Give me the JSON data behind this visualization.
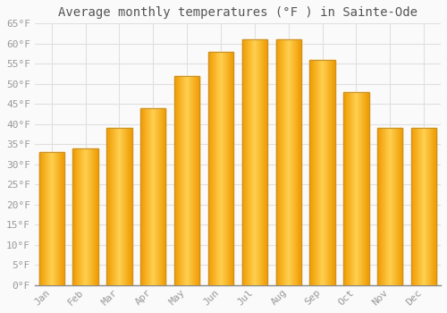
{
  "title": "Average monthly temperatures (°F ) in Sainte-Ode",
  "months": [
    "Jan",
    "Feb",
    "Mar",
    "Apr",
    "May",
    "Jun",
    "Jul",
    "Aug",
    "Sep",
    "Oct",
    "Nov",
    "Dec"
  ],
  "values": [
    33,
    34,
    39,
    44,
    52,
    58,
    61,
    61,
    56,
    48,
    39,
    39
  ],
  "bar_color_center": "#FFC020",
  "bar_color_edge": "#F5A800",
  "bar_border_color": "#C8922A",
  "ylim": [
    0,
    65
  ],
  "yticks": [
    0,
    5,
    10,
    15,
    20,
    25,
    30,
    35,
    40,
    45,
    50,
    55,
    60,
    65
  ],
  "background_color": "#FAFAFA",
  "plot_bg_color": "#FAFAFA",
  "grid_color": "#E0E0E0",
  "title_fontsize": 10,
  "tick_fontsize": 8,
  "tick_color": "#999999",
  "font_family": "monospace",
  "bar_width": 0.75
}
